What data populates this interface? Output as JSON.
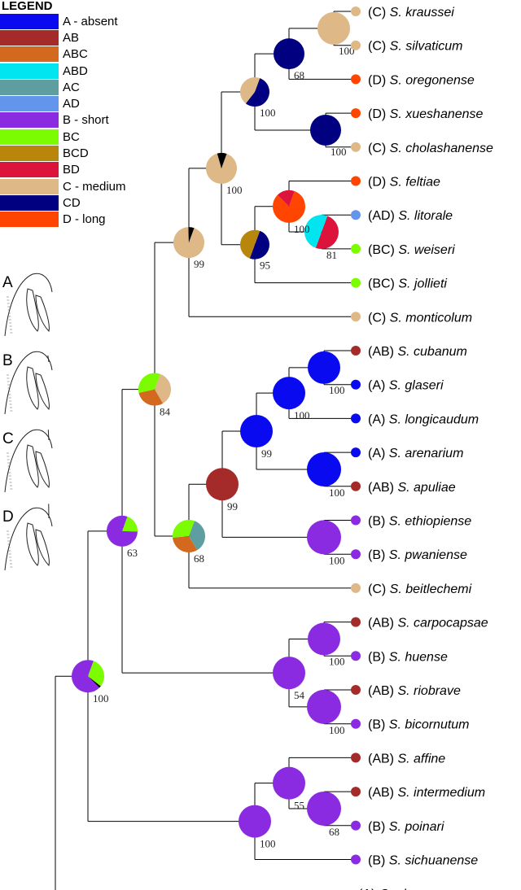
{
  "legend": {
    "title": "LEGEND",
    "items": [
      {
        "key": "A",
        "label": "A  - absent",
        "color": "#0a0af0"
      },
      {
        "key": "AB",
        "label": "AB",
        "color": "#a52a2a"
      },
      {
        "key": "ABC",
        "label": "ABC",
        "color": "#d2691e"
      },
      {
        "key": "ABD",
        "label": "ABD",
        "color": "#00e5f0"
      },
      {
        "key": "AC",
        "label": "AC",
        "color": "#5f9ea0"
      },
      {
        "key": "AD",
        "label": "AD",
        "color": "#6495ed"
      },
      {
        "key": "B",
        "label": "B  - short",
        "color": "#8a2be2"
      },
      {
        "key": "BC",
        "label": "BC",
        "color": "#7cfc00"
      },
      {
        "key": "BCD",
        "label": "BCD",
        "color": "#b8860b"
      },
      {
        "key": "BD",
        "label": "BD",
        "color": "#dc143c"
      },
      {
        "key": "C",
        "label": "C  - medium",
        "color": "#deb887"
      },
      {
        "key": "CD",
        "label": "CD",
        "color": "#000080"
      },
      {
        "key": "D",
        "label": "D  - long",
        "color": "#ff4500"
      }
    ]
  },
  "panels": [
    "A",
    "B",
    "C",
    "D"
  ],
  "tips": [
    {
      "state": "C",
      "code": "(C)",
      "genus": "S.",
      "species": "kraussei"
    },
    {
      "state": "C",
      "code": "(C)",
      "genus": "S.",
      "species": "silvaticum"
    },
    {
      "state": "D",
      "code": "(D)",
      "genus": "S.",
      "species": "oregonense"
    },
    {
      "state": "D",
      "code": "(D)",
      "genus": "S.",
      "species": "xueshanense"
    },
    {
      "state": "C",
      "code": "(C)",
      "genus": "S.",
      "species": "cholashanense"
    },
    {
      "state": "D",
      "code": "(D)",
      "genus": "S.",
      "species": "feltiae"
    },
    {
      "state": "AD",
      "code": "(AD)",
      "genus": "S.",
      "species": "litorale"
    },
    {
      "state": "BC",
      "code": "(BC)",
      "genus": "S.",
      "species": "weiseri"
    },
    {
      "state": "BC",
      "code": "(BC)",
      "genus": "S.",
      "species": "jollieti"
    },
    {
      "state": "C",
      "code": "(C)",
      "genus": "S.",
      "species": "monticolum"
    },
    {
      "state": "AB",
      "code": "(AB)",
      "genus": "S.",
      "species": "cubanum"
    },
    {
      "state": "A",
      "code": "(A)",
      "genus": "S.",
      "species": "glaseri"
    },
    {
      "state": "A",
      "code": "(A)",
      "genus": "S.",
      "species": "longicaudum"
    },
    {
      "state": "A",
      "code": "(A)",
      "genus": "S.",
      "species": "arenarium"
    },
    {
      "state": "AB",
      "code": "(AB)",
      "genus": "S.",
      "species": "apuliae"
    },
    {
      "state": "B",
      "code": "(B)",
      "genus": "S.",
      "species": "ethiopiense"
    },
    {
      "state": "B",
      "code": "(B)",
      "genus": "S.",
      "species": "pwaniense"
    },
    {
      "state": "C",
      "code": "(C)",
      "genus": "S.",
      "species": "beitlechemi"
    },
    {
      "state": "AB",
      "code": "(AB)",
      "genus": "S.",
      "species": "carpocapsae"
    },
    {
      "state": "B",
      "code": "(B)",
      "genus": "S.",
      "species": "huense"
    },
    {
      "state": "AB",
      "code": "(AB)",
      "genus": "S.",
      "species": "riobrave"
    },
    {
      "state": "B",
      "code": "(B)",
      "genus": "S.",
      "species": "bicornutum"
    },
    {
      "state": "AB",
      "code": "(AB)",
      "genus": "S.",
      "species": "affine"
    },
    {
      "state": "AB",
      "code": "(AB)",
      "genus": "S.",
      "species": "intermedium"
    },
    {
      "state": "B",
      "code": "(B)",
      "genus": "S.",
      "species": "poinari"
    },
    {
      "state": "B",
      "code": "(B)",
      "genus": "S.",
      "species": "sichuanense"
    },
    {
      "state": "",
      "code": "(A)",
      "genus": "C.",
      "species": "elegans"
    }
  ],
  "nodes": [
    {
      "id": "n_kra_sil",
      "tips": [
        0,
        1
      ],
      "parent": "n_ksO",
      "support": "100",
      "pie": [
        [
          "C",
          1
        ]
      ]
    },
    {
      "id": "n_ksO",
      "tips": [
        0,
        2
      ],
      "parent": "n_up",
      "support": "68",
      "pie": [
        [
          "CD",
          1
        ]
      ]
    },
    {
      "id": "n_xue_cho",
      "tips": [
        3,
        4
      ],
      "parent": "n_up",
      "support": "100",
      "pie": [
        [
          "CD",
          1
        ]
      ]
    },
    {
      "id": "n_up",
      "tips": [
        0,
        4
      ],
      "parent": "n_main",
      "support": "100",
      "pie": [
        [
          "CD",
          0.55
        ],
        [
          "C",
          0.45
        ]
      ]
    },
    {
      "id": "n_lit_wei",
      "tips": [
        6,
        7
      ],
      "parent": "n_fel",
      "support": "81",
      "pie": [
        [
          "BD",
          0.5
        ],
        [
          "ABD",
          0.5
        ]
      ]
    },
    {
      "id": "n_fel",
      "tips": [
        5,
        7
      ],
      "parent": "n_lo",
      "support": "100",
      "pie": [
        [
          "D",
          0.82
        ],
        [
          "BD",
          0.18
        ]
      ]
    },
    {
      "id": "n_lo",
      "tips": [
        5,
        8
      ],
      "parent": "n_main",
      "support": "95",
      "pie": [
        [
          "CD",
          0.5
        ],
        [
          "BCD",
          0.5
        ]
      ]
    },
    {
      "id": "n_main",
      "tips": [
        0,
        8
      ],
      "parent": "n_top",
      "support": "100",
      "pie": [
        [
          "C",
          0.9
        ],
        [
          "black",
          0.1
        ]
      ]
    },
    {
      "id": "n_top",
      "tips": [
        0,
        9
      ],
      "parent": "n_84",
      "support": "99",
      "pie": [
        [
          "C",
          0.94
        ],
        [
          "black",
          0.06
        ]
      ]
    },
    {
      "id": "n_cub_gla",
      "tips": [
        10,
        11
      ],
      "parent": "n_cgl",
      "support": "100",
      "pie": [
        [
          "A",
          1
        ]
      ]
    },
    {
      "id": "n_cgl",
      "tips": [
        10,
        12
      ],
      "parent": "n_99a",
      "support": "100",
      "pie": [
        [
          "A",
          1
        ]
      ]
    },
    {
      "id": "n_are_apu",
      "tips": [
        13,
        14
      ],
      "parent": "n_99a",
      "support": "100",
      "pie": [
        [
          "A",
          1
        ]
      ]
    },
    {
      "id": "n_99a",
      "tips": [
        10,
        14
      ],
      "parent": "n_99b",
      "support": "99",
      "pie": [
        [
          "A",
          1
        ]
      ]
    },
    {
      "id": "n_eth_pwa",
      "tips": [
        15,
        16
      ],
      "parent": "n_99b",
      "support": "100",
      "pie": [
        [
          "B",
          1
        ]
      ]
    },
    {
      "id": "n_99b",
      "tips": [
        10,
        16
      ],
      "parent": "n_68",
      "support": "99",
      "pie": [
        [
          "AB",
          1
        ]
      ]
    },
    {
      "id": "n_68",
      "tips": [
        10,
        17
      ],
      "parent": "n_84",
      "support": "68",
      "pie": [
        [
          "AC",
          0.36
        ],
        [
          "ABC",
          0.32
        ],
        [
          "BC",
          0.32
        ]
      ]
    },
    {
      "id": "n_84",
      "tips": [
        0,
        17
      ],
      "parent": "n_63",
      "support": "84",
      "pie": [
        [
          "C",
          0.36
        ],
        [
          "ABC",
          0.3
        ],
        [
          "BC",
          0.34
        ]
      ]
    },
    {
      "id": "n_car_hue",
      "tips": [
        18,
        19
      ],
      "parent": "n_54",
      "support": "100",
      "pie": [
        [
          "B",
          1
        ]
      ]
    },
    {
      "id": "n_rio_bic",
      "tips": [
        20,
        21
      ],
      "parent": "n_54",
      "support": "100",
      "pie": [
        [
          "B",
          1
        ]
      ]
    },
    {
      "id": "n_54",
      "tips": [
        18,
        21
      ],
      "parent": "n_63",
      "support": "54",
      "pie": [
        [
          "B",
          1
        ]
      ]
    },
    {
      "id": "n_63",
      "tips": [
        0,
        21
      ],
      "parent": "n_root",
      "support": "63",
      "pie": [
        [
          "BC",
          0.2
        ],
        [
          "B",
          0.8
        ]
      ]
    },
    {
      "id": "n_int_poi",
      "tips": [
        23,
        24
      ],
      "parent": "n_55",
      "support": "68",
      "pie": [
        [
          "B",
          1
        ]
      ]
    },
    {
      "id": "n_55",
      "tips": [
        22,
        24
      ],
      "parent": "n_low",
      "support": "55",
      "pie": [
        [
          "B",
          1
        ]
      ]
    },
    {
      "id": "n_low",
      "tips": [
        22,
        25
      ],
      "parent": "n_root",
      "support": "100",
      "pie": [
        [
          "B",
          1
        ]
      ]
    },
    {
      "id": "n_root",
      "tips": [
        0,
        25
      ],
      "parent": "n_outer",
      "support": "100",
      "pie": [
        [
          "BC",
          0.3
        ],
        [
          "black",
          0.02
        ],
        [
          "B",
          0.68
        ]
      ]
    }
  ]
}
